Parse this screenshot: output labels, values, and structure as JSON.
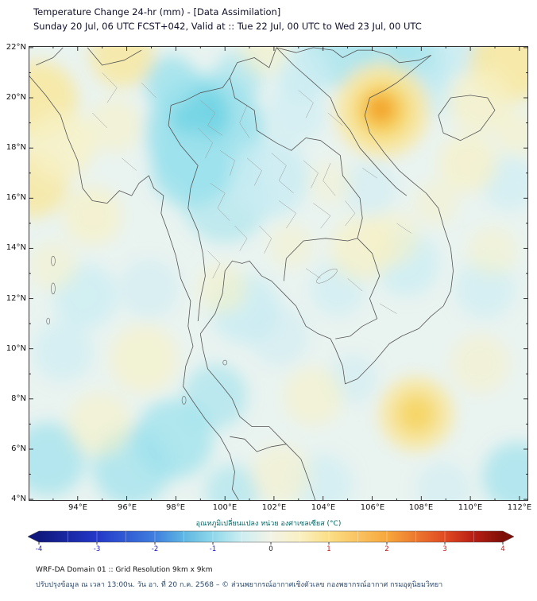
{
  "header": {
    "title": "Temperature Change 24-hr (mm) - [Data Assimilation]",
    "subtitle": "Sunday 20 Jul, 06 UTC FCST+042, Valid at :: Tue 22 Jul, 00 UTC to Wed 23 Jul, 00 UTC"
  },
  "map": {
    "lat_ticks": [
      "22°N",
      "20°N",
      "18°N",
      "16°N",
      "14°N",
      "12°N",
      "10°N",
      "8°N",
      "6°N",
      "4°N"
    ],
    "lon_ticks": [
      "94°E",
      "96°E",
      "98°E",
      "100°E",
      "102°E",
      "104°E",
      "106°E",
      "108°E",
      "110°E",
      "112°E"
    ]
  },
  "colorbar": {
    "label": "อุณหภูมิเปลี่ยนแปลง หน่วย องศาเซลเซียส (°C)",
    "ticks": [
      "-4",
      "-3",
      "-2",
      "-1",
      "0",
      "1",
      "2",
      "3",
      "4"
    ],
    "negative_label_color": "#1515c8",
    "positive_label_color": "#c81515",
    "zero_label_color": "#222222",
    "stops": [
      {
        "v": -4,
        "c": "#10187d"
      },
      {
        "v": -3,
        "c": "#2438c8"
      },
      {
        "v": -2,
        "c": "#3f7ede"
      },
      {
        "v": -1.5,
        "c": "#5fb6e2"
      },
      {
        "v": -1,
        "c": "#8fd8ea"
      },
      {
        "v": -0.5,
        "c": "#cdeef2"
      },
      {
        "v": 0,
        "c": "#f2f3e6"
      },
      {
        "v": 0.5,
        "c": "#faf0c4"
      },
      {
        "v": 1,
        "c": "#fbdf86"
      },
      {
        "v": 2,
        "c": "#f7a73c"
      },
      {
        "v": 3,
        "c": "#e04a22"
      },
      {
        "v": 3.5,
        "c": "#b81e14"
      },
      {
        "v": 4,
        "c": "#7d0f08"
      }
    ]
  },
  "footer": {
    "line1": "WRF-DA Domain 01 :: Grid Resolution 9km x 9km",
    "line2": "ปรับปรุงข้อมูล ณ เวลา 13:00น. วัน อา. ที่ 20 ก.ค. 2568 – © ส่วนพยากรณ์อากาศเชิงตัวเลข กองพยากรณ์อากาศ กรมอุตุนิยมวิทยา"
  },
  "chart_data": {
    "type": "heatmap",
    "title": "Temperature Change 24-hr (mm) - [Data Assimilation]",
    "units": "°C",
    "lon_range": [
      92.0,
      112.36
    ],
    "lat_range": [
      3.94,
      22.06
    ],
    "colorbar_range": [
      -4,
      4
    ],
    "base_color": "#e9f3f0",
    "anomaly_features": [
      {
        "lon": 99.2,
        "lat": 18.6,
        "r": 2.4,
        "value": -1,
        "color": "#9ce1ec",
        "opacity": 0.9
      },
      {
        "lon": 99.0,
        "lat": 19.3,
        "r": 1.2,
        "value": -1.5,
        "color": "#6fd3e4",
        "opacity": 0.85
      },
      {
        "lon": 98.6,
        "lat": 17.2,
        "r": 1.6,
        "value": -1,
        "color": "#9ce1ec",
        "opacity": 0.8
      },
      {
        "lon": 100.0,
        "lat": 16.0,
        "r": 1.8,
        "value": -0.5,
        "color": "#9ce1ec",
        "opacity": 0.55
      },
      {
        "lon": 101.8,
        "lat": 16.8,
        "r": 1.6,
        "value": -0.5,
        "color": "#c9ecf3",
        "opacity": 0.8
      },
      {
        "lon": 97.8,
        "lat": 20.6,
        "r": 1.1,
        "value": -1,
        "color": "#9ce1ec",
        "opacity": 0.8
      },
      {
        "lon": 104.6,
        "lat": 21.9,
        "r": 1.5,
        "value": -1,
        "color": "#9ce1ec",
        "opacity": 0.7
      },
      {
        "lon": 103.2,
        "lat": 21.0,
        "r": 1.1,
        "value": -0.5,
        "color": "#c9ecf3",
        "opacity": 0.8
      },
      {
        "lon": 107.9,
        "lat": 21.4,
        "r": 1.3,
        "value": -1,
        "color": "#9ce1ec",
        "opacity": 0.75
      },
      {
        "lon": 109.6,
        "lat": 21.9,
        "r": 1.1,
        "value": -0.5,
        "color": "#c9ecf3",
        "opacity": 0.8
      },
      {
        "lon": 100.8,
        "lat": 11.6,
        "r": 1.4,
        "value": -0.5,
        "color": "#c9ecf3",
        "opacity": 0.8
      },
      {
        "lon": 99.6,
        "lat": 8.1,
        "r": 1.3,
        "value": -1,
        "color": "#9ce1ec",
        "opacity": 0.6
      },
      {
        "lon": 97.9,
        "lat": 6.4,
        "r": 1.6,
        "value": -1,
        "color": "#9ce1ec",
        "opacity": 0.75
      },
      {
        "lon": 96.2,
        "lat": 5.3,
        "r": 1.6,
        "value": -1,
        "color": "#9ce1ec",
        "opacity": 0.7
      },
      {
        "lon": 92.8,
        "lat": 5.6,
        "r": 1.5,
        "value": -1,
        "color": "#9ce1ec",
        "opacity": 0.7
      },
      {
        "lon": 94.3,
        "lat": 12.1,
        "r": 1.3,
        "value": -0.5,
        "color": "#c9ecf3",
        "opacity": 0.7
      },
      {
        "lon": 93.4,
        "lat": 9.9,
        "r": 1.2,
        "value": -0.5,
        "color": "#c9ecf3",
        "opacity": 0.6
      },
      {
        "lon": 107.4,
        "lat": 13.4,
        "r": 1.3,
        "value": -0.5,
        "color": "#c9ecf3",
        "opacity": 0.7
      },
      {
        "lon": 110.6,
        "lat": 12.4,
        "r": 1.2,
        "value": -0.5,
        "color": "#c9ecf3",
        "opacity": 0.6
      },
      {
        "lon": 111.6,
        "lat": 16.6,
        "r": 1.1,
        "value": -0.5,
        "color": "#c9ecf3",
        "opacity": 0.6
      },
      {
        "lon": 104.6,
        "lat": 12.4,
        "r": 1.1,
        "value": -0.5,
        "color": "#c9ecf3",
        "opacity": 0.6
      },
      {
        "lon": 111.9,
        "lat": 4.9,
        "r": 1.4,
        "value": -1,
        "color": "#9ce1ec",
        "opacity": 0.7
      },
      {
        "lon": 100.3,
        "lat": 4.3,
        "r": 1.1,
        "value": -1,
        "color": "#9ce1ec",
        "opacity": 0.55
      },
      {
        "lon": 105.9,
        "lat": 16.4,
        "r": 1.1,
        "value": -0.5,
        "color": "#c9ecf3",
        "opacity": 0.5
      },
      {
        "lon": 102.9,
        "lat": 19.4,
        "r": 1.2,
        "value": -0.5,
        "color": "#c9ecf3",
        "opacity": 0.6
      },
      {
        "lon": 106.6,
        "lat": 21.9,
        "r": 1.0,
        "value": -1,
        "color": "#9ce1ec",
        "opacity": 0.6
      },
      {
        "lon": 100.6,
        "lat": 20.9,
        "r": 1.0,
        "value": -1,
        "color": "#9ce1ec",
        "opacity": 0.6
      },
      {
        "lon": 104.0,
        "lat": 4.6,
        "r": 1.2,
        "value": -0.5,
        "color": "#c9ecf3",
        "opacity": 0.6
      },
      {
        "lon": 108.9,
        "lat": 4.4,
        "r": 1.1,
        "value": -0.5,
        "color": "#c9ecf3",
        "opacity": 0.5
      },
      {
        "lon": 96.9,
        "lat": 12.4,
        "r": 1.2,
        "value": -0.5,
        "color": "#c9ecf3",
        "opacity": 0.5
      },
      {
        "lon": 102.2,
        "lat": 10.5,
        "r": 1.2,
        "value": -0.5,
        "color": "#c9ecf3",
        "opacity": 0.5
      },
      {
        "lon": 105.2,
        "lat": 8.8,
        "r": 1.0,
        "value": -0.5,
        "color": "#c9ecf3",
        "opacity": 0.5
      },
      {
        "lon": 108.4,
        "lat": 20.2,
        "r": 1.0,
        "value": -0.5,
        "color": "#c9ecf3",
        "opacity": 0.7
      },
      {
        "lon": 92.4,
        "lat": 19.9,
        "r": 1.6,
        "value": 1,
        "color": "#f8e79e",
        "opacity": 0.85
      },
      {
        "lon": 92.2,
        "lat": 16.6,
        "r": 1.4,
        "value": 1,
        "color": "#f8e79e",
        "opacity": 0.8
      },
      {
        "lon": 93.3,
        "lat": 18.1,
        "r": 1.4,
        "value": 0.5,
        "color": "#f7f1c6",
        "opacity": 0.8
      },
      {
        "lon": 95.8,
        "lat": 21.7,
        "r": 1.3,
        "value": 1,
        "color": "#f8e79e",
        "opacity": 0.8
      },
      {
        "lon": 94.6,
        "lat": 15.3,
        "r": 1.2,
        "value": 0.5,
        "color": "#f7f1c6",
        "opacity": 0.7
      },
      {
        "lon": 111.6,
        "lat": 21.4,
        "r": 1.6,
        "value": 1,
        "color": "#f8e79e",
        "opacity": 0.85
      },
      {
        "lon": 110.4,
        "lat": 19.9,
        "r": 1.3,
        "value": 0.5,
        "color": "#f7f1c6",
        "opacity": 0.7
      },
      {
        "lon": 106.4,
        "lat": 19.5,
        "r": 1.9,
        "value": 1,
        "color": "#f8e79e",
        "opacity": 0.9
      },
      {
        "lon": 106.4,
        "lat": 19.5,
        "r": 1.15,
        "value": 1.5,
        "color": "#f6d360",
        "opacity": 0.95
      },
      {
        "lon": 106.35,
        "lat": 19.55,
        "r": 0.6,
        "value": 2.5,
        "color": "#f2a024",
        "opacity": 0.95
      },
      {
        "lon": 109.9,
        "lat": 17.4,
        "r": 1.2,
        "value": 0.5,
        "color": "#f7f1c6",
        "opacity": 0.7
      },
      {
        "lon": 107.8,
        "lat": 7.4,
        "r": 1.5,
        "value": 1,
        "color": "#f8e79e",
        "opacity": 0.9
      },
      {
        "lon": 107.8,
        "lat": 7.4,
        "r": 0.8,
        "value": 1.5,
        "color": "#f6d360",
        "opacity": 0.85
      },
      {
        "lon": 103.6,
        "lat": 8.1,
        "r": 1.2,
        "value": 0.5,
        "color": "#f7f1c6",
        "opacity": 0.6
      },
      {
        "lon": 99.9,
        "lat": 12.4,
        "r": 1.0,
        "value": 0.5,
        "color": "#f7f1c6",
        "opacity": 0.6
      },
      {
        "lon": 96.7,
        "lat": 9.6,
        "r": 1.4,
        "value": 0.5,
        "color": "#f7f1c6",
        "opacity": 0.65
      },
      {
        "lon": 94.9,
        "lat": 7.0,
        "r": 1.3,
        "value": 0.5,
        "color": "#f7f1c6",
        "opacity": 0.6
      },
      {
        "lon": 105.6,
        "lat": 14.0,
        "r": 1.3,
        "value": 0.5,
        "color": "#f7f1c6",
        "opacity": 0.7
      },
      {
        "lon": 106.8,
        "lat": 14.4,
        "r": 1.1,
        "value": 0.5,
        "color": "#f7f1c6",
        "opacity": 0.6
      },
      {
        "lon": 102.7,
        "lat": 14.1,
        "r": 0.9,
        "value": 0.5,
        "color": "#f7f1c6",
        "opacity": 0.5
      },
      {
        "lon": 110.9,
        "lat": 13.9,
        "r": 1.0,
        "value": 0.5,
        "color": "#f7f1c6",
        "opacity": 0.5
      },
      {
        "lon": 110.4,
        "lat": 9.4,
        "r": 1.2,
        "value": 0.5,
        "color": "#f7f1c6",
        "opacity": 0.55
      },
      {
        "lon": 93.0,
        "lat": 13.3,
        "r": 1.0,
        "value": 0.5,
        "color": "#f7f1c6",
        "opacity": 0.5
      },
      {
        "lon": 95.5,
        "lat": 18.9,
        "r": 1.1,
        "value": 0.5,
        "color": "#f7f1c6",
        "opacity": 0.6
      },
      {
        "lon": 111.9,
        "lat": 18.6,
        "r": 0.9,
        "value": 0.5,
        "color": "#f7f1c6",
        "opacity": 0.6
      },
      {
        "lon": 104.3,
        "lat": 16.6,
        "r": 0.9,
        "value": 0.5,
        "color": "#f7f1c6",
        "opacity": 0.4
      },
      {
        "lon": 101.6,
        "lat": 21.9,
        "r": 1.0,
        "value": 0.5,
        "color": "#f7f1c6",
        "opacity": 0.6
      },
      {
        "lon": 102.3,
        "lat": 5.0,
        "r": 1.2,
        "value": 0.5,
        "color": "#f7f1c6",
        "opacity": 0.55
      },
      {
        "lon": 108.6,
        "lat": 15.8,
        "r": 0.9,
        "value": 0.5,
        "color": "#f7f1c6",
        "opacity": 0.5
      }
    ]
  }
}
